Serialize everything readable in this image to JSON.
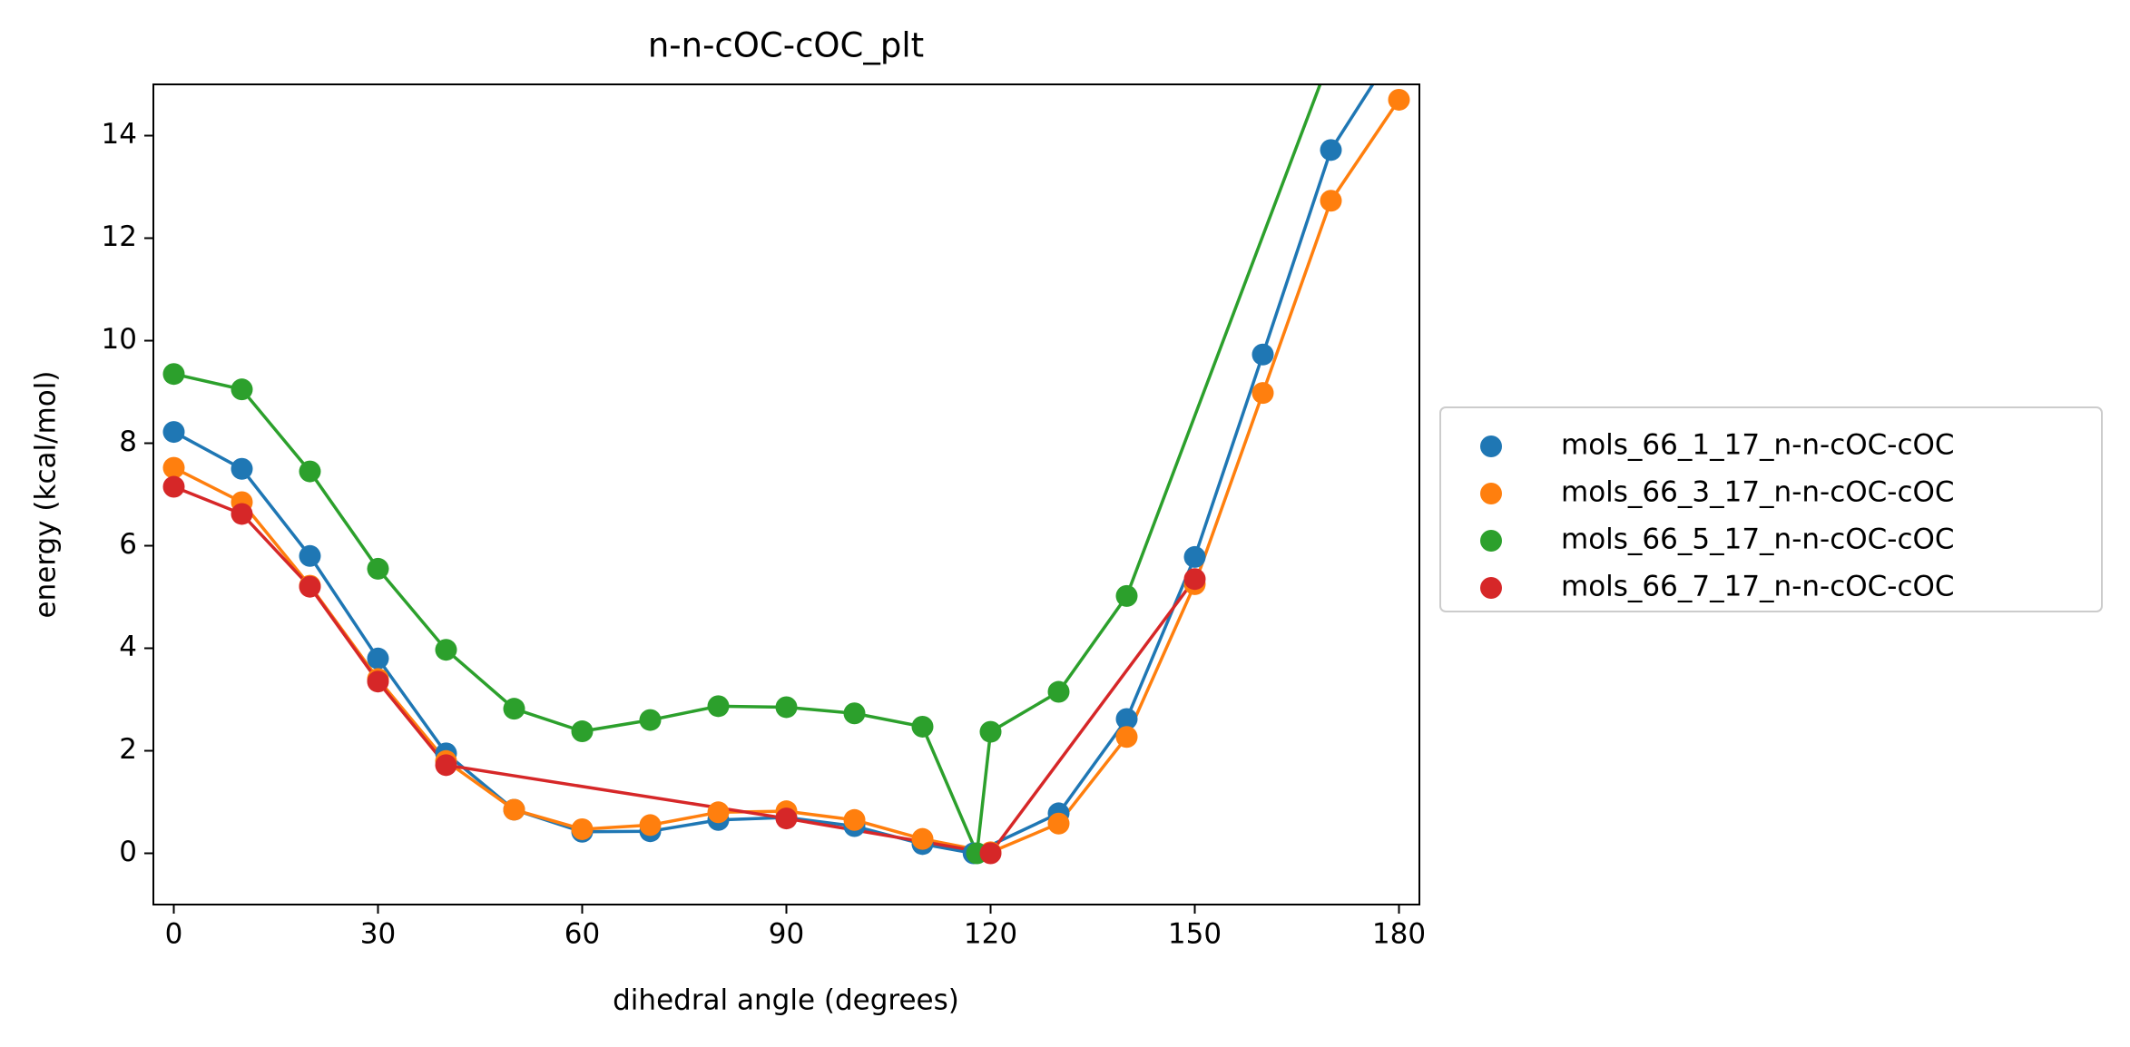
{
  "chart_data": {
    "type": "line",
    "title": "n-n-cOC-cOC_plt",
    "xlabel": "dihedral angle (degrees)",
    "ylabel": "energy (kcal/mol)",
    "xlim": [
      -3,
      183
    ],
    "ylim": [
      -1,
      15
    ],
    "xticks": [
      0,
      30,
      60,
      90,
      120,
      150,
      180
    ],
    "yticks": [
      0,
      2,
      4,
      6,
      8,
      10,
      12,
      14
    ],
    "grid": false,
    "legend": "outside right",
    "series": [
      {
        "name": "mols_66_1_17_n-n-cOC-cOC",
        "color": "#1f77b4",
        "x": [
          0,
          10,
          20,
          30,
          40,
          50,
          60,
          70,
          80,
          90,
          100,
          110,
          117.5,
          130,
          140,
          150,
          160,
          170,
          180
        ],
        "values": [
          8.22,
          7.5,
          5.8,
          3.8,
          1.95,
          0.85,
          0.42,
          0.43,
          0.65,
          0.7,
          0.53,
          0.18,
          0,
          0.78,
          2.62,
          5.78,
          9.73,
          13.72,
          15.8
        ]
      },
      {
        "name": "mols_66_3_17_n-n-cOC-cOC",
        "color": "#ff7f0e",
        "x": [
          0,
          10,
          20,
          30,
          40,
          50,
          60,
          70,
          80,
          90,
          100,
          110,
          120,
          130,
          140,
          150,
          160,
          170,
          180
        ],
        "values": [
          7.52,
          6.85,
          5.22,
          3.4,
          1.8,
          0.85,
          0.47,
          0.55,
          0.8,
          0.82,
          0.65,
          0.28,
          0.02,
          0.58,
          2.27,
          5.25,
          8.98,
          12.73,
          14.7
        ]
      },
      {
        "name": "mols_66_5_17_n-n-cOC-cOC",
        "color": "#2ca02c",
        "x": [
          0,
          10,
          20,
          30,
          40,
          50,
          60,
          70,
          80,
          90,
          100,
          110,
          118,
          120,
          130,
          140,
          180
        ],
        "values": [
          9.35,
          9.05,
          7.45,
          5.55,
          3.97,
          2.82,
          2.38,
          2.6,
          2.87,
          2.85,
          2.73,
          2.47,
          0,
          2.37,
          3.15,
          5.02,
          19.07
        ]
      },
      {
        "name": "mols_66_7_17_n-n-cOC-cOC",
        "color": "#d62728",
        "x": [
          0,
          10,
          20,
          30,
          40,
          90,
          120,
          150
        ],
        "values": [
          7.15,
          6.62,
          5.2,
          3.35,
          1.72,
          0.68,
          0,
          5.35
        ]
      }
    ]
  }
}
